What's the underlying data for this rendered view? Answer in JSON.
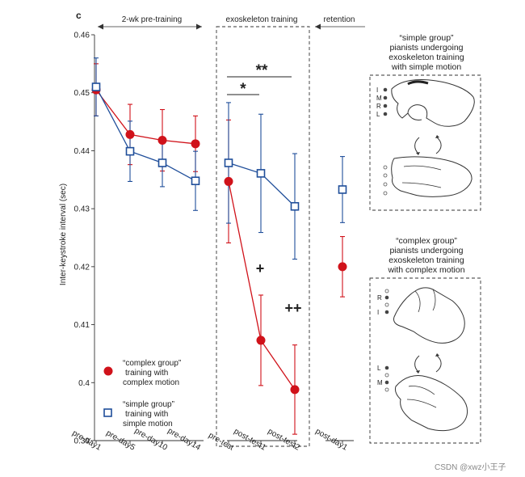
{
  "panel_label": "c",
  "phases": {
    "pretraining": "2-wk pre-training",
    "exoskeleton": "exoskeleton training",
    "retention": "retention"
  },
  "significance": {
    "double_star": "**",
    "single_star": "*",
    "plus": "+",
    "double_plus": "++"
  },
  "hands": {
    "simple_caption": [
      "“simple group”",
      "pianists undergoing",
      "exoskeleton training",
      "with simple motion"
    ],
    "complex_caption": [
      "“complex group”",
      "pianists undergoing",
      "exoskeleton training",
      "with complex motion"
    ],
    "simple_finger_labels": [
      "I",
      "M",
      "R",
      "L"
    ],
    "complex_top_labels": [
      "R",
      "I"
    ],
    "complex_bottom_labels": [
      "L",
      "M"
    ]
  },
  "watermark": "CSDN @xwz小王子",
  "colors": {
    "complex": "#d0121a",
    "simple": "#1f4e9a",
    "axis": "#333333"
  },
  "chart_data": {
    "type": "line",
    "ylabel": "Inter-keystroke interval (sec)",
    "ylim": [
      0.39,
      0.46
    ],
    "yticks": [
      "0.39",
      "0.4",
      "0.41",
      "0.42",
      "0.43",
      "0.44",
      "0.45",
      "0.46"
    ],
    "categories": [
      "pre-day1",
      "pre-day5",
      "pre-day10",
      "pre-day14",
      "pre-test",
      "post-test1",
      "post-test2",
      "post-day1"
    ],
    "legend": {
      "placement": "bottom-left",
      "complex": [
        "“complex group”",
        "training with",
        "complex motion"
      ],
      "simple": [
        "“simple group”",
        "training with",
        "simple motion"
      ]
    },
    "series": [
      {
        "key": "complex",
        "marker": "circle",
        "segments": [
          [
            0,
            1,
            2,
            3
          ],
          [
            4,
            5,
            6
          ],
          [
            7
          ]
        ],
        "values": [
          0.4505,
          0.4428,
          0.4418,
          0.4412,
          0.4347,
          0.4073,
          0.3988,
          0.42
        ],
        "err": [
          0.0045,
          0.0052,
          0.0053,
          0.0048,
          0.0106,
          0.0078,
          0.0077,
          0.0052
        ]
      },
      {
        "key": "simple",
        "marker": "square",
        "segments": [
          [
            0,
            1,
            2,
            3
          ],
          [
            4,
            5,
            6
          ],
          [
            7
          ]
        ],
        "values": [
          0.451,
          0.4399,
          0.4379,
          0.4348,
          0.4379,
          0.4361,
          0.4304,
          0.4333
        ],
        "err": [
          0.005,
          0.0052,
          0.0041,
          0.0051,
          0.0104,
          0.0102,
          0.0091,
          0.0057
        ]
      }
    ]
  }
}
